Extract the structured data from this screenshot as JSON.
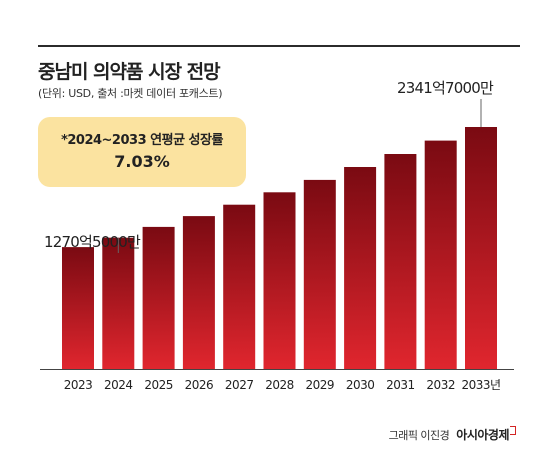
{
  "header": {
    "title": "중남미 의약품 시장 전망",
    "subtitle": "(단위: USD, 출처 :마켓 데이터 포캐스트)"
  },
  "callout": {
    "label": "*2024~2033 연평균 성장률",
    "value": "7.03%"
  },
  "footer": {
    "credit": "그래픽 이진경",
    "brand": "아시아경제"
  },
  "colors": {
    "bar_top": "#7a0a12",
    "bar_bottom": "#e0262e",
    "callout_bg": "#fbe3a0",
    "rule": "#2b2b2b"
  },
  "chart_data": {
    "type": "bar",
    "title": "중남미 의약품 시장 전망",
    "categories": [
      "2023",
      "2024",
      "2025",
      "2026",
      "2027",
      "2028",
      "2029",
      "2030",
      "2031",
      "2032",
      "2033년"
    ],
    "values": [
      1180,
      1270.5,
      1375,
      1480,
      1590,
      1710,
      1830,
      1955,
      2080,
      2210,
      2341.7
    ],
    "unit": "억 USD",
    "annotations": [
      {
        "category": "2024",
        "label": "1270억5000만"
      },
      {
        "category": "2033년",
        "label": "2341억7000만"
      }
    ],
    "grid": false,
    "legend": "none"
  }
}
